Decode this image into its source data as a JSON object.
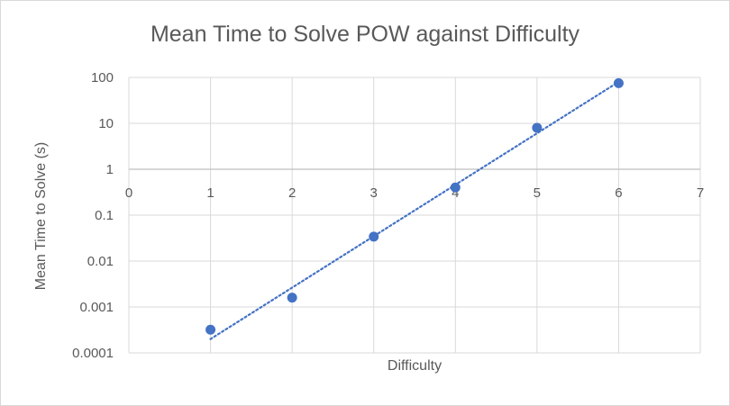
{
  "chart_data": {
    "type": "scatter",
    "title": "Mean Time to Solve POW against Difficulty",
    "xlabel": "Difficulty",
    "ylabel": "Mean Time to Solve (s)",
    "x_ticks": [
      "0",
      "1",
      "2",
      "3",
      "4",
      "5",
      "6",
      "7"
    ],
    "y_ticks": [
      "0.0001",
      "0.001",
      "0.01",
      "0.1",
      "1",
      "10",
      "100"
    ],
    "xlim": [
      0,
      7
    ],
    "ylim": [
      0.0001,
      100
    ],
    "y_scale": "log",
    "grid": true,
    "legend": "none",
    "point_color": "#4472c4",
    "trendline": {
      "type": "exponential",
      "style": "dotted",
      "color": "#4472c4",
      "x": [
        1,
        6
      ],
      "y": [
        0.0002,
        80
      ]
    },
    "x": [
      1,
      2,
      3,
      4,
      5,
      6
    ],
    "y": [
      0.00032,
      0.0016,
      0.034,
      0.4,
      8,
      75
    ]
  }
}
